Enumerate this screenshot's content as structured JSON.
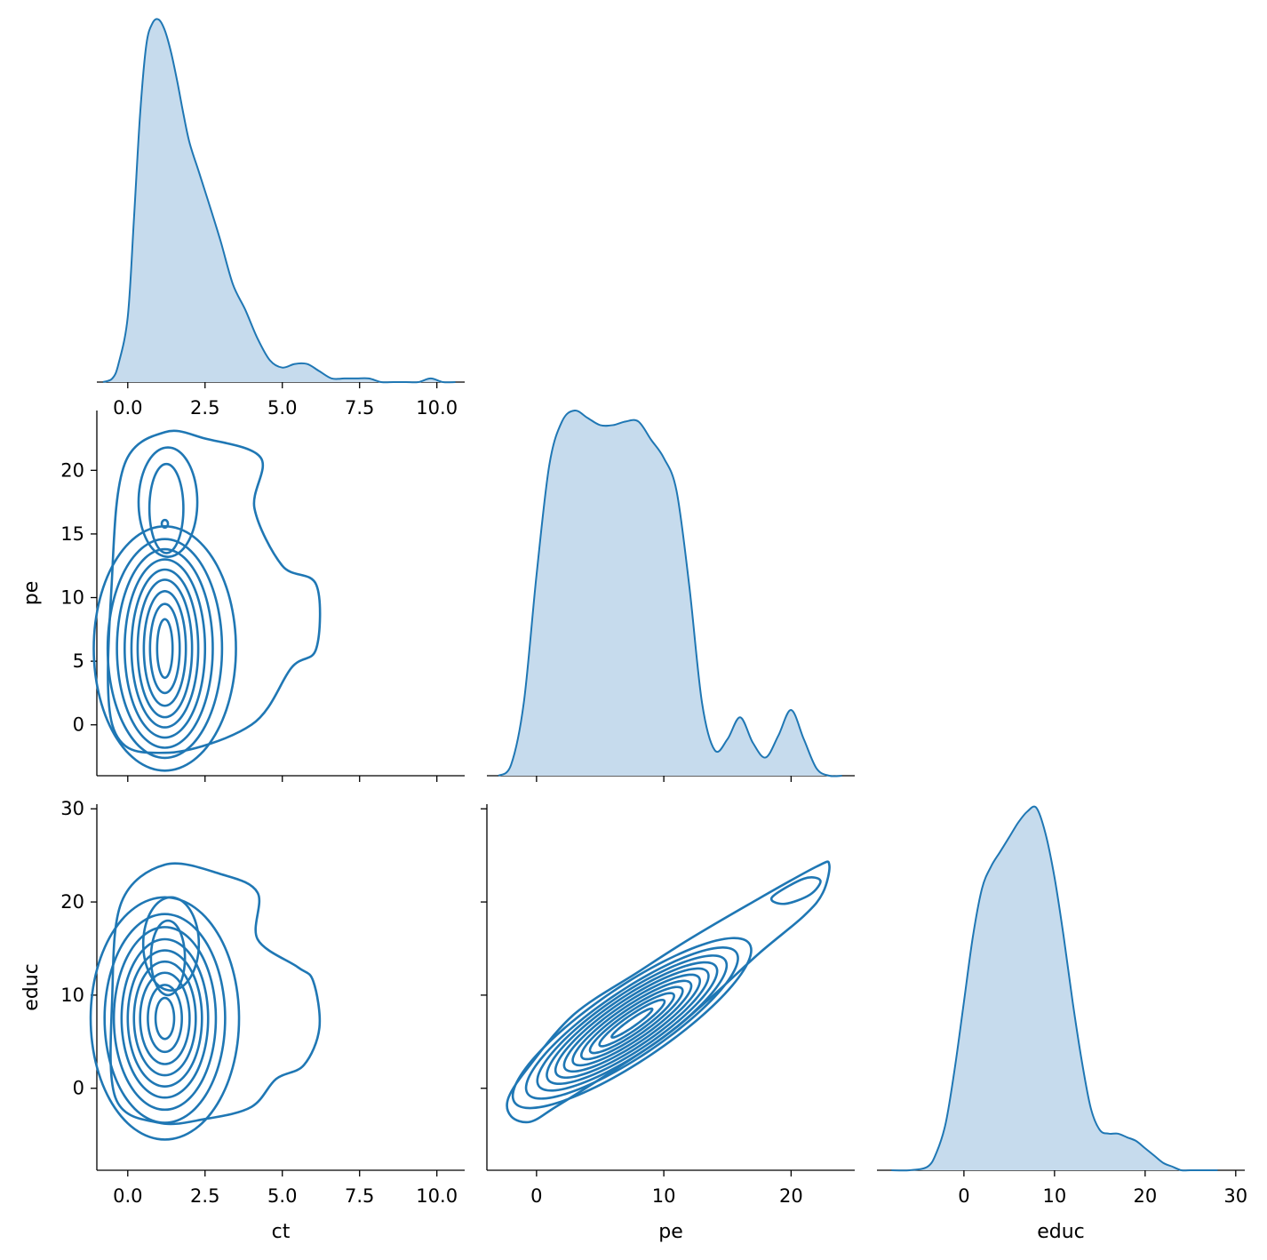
{
  "colors": {
    "series": "#1f77b4",
    "fill": "#c6dbed",
    "axis": "#000000"
  },
  "variables": [
    "ct",
    "pe",
    "educ"
  ],
  "chart_data": [
    {
      "type": "area",
      "id": "ct-diag",
      "xlabel": "",
      "ylabel": "",
      "xlim": [
        -1.0,
        10.9
      ],
      "ylim": [
        0,
        1
      ],
      "xticks": [
        0.0,
        2.5,
        5.0,
        7.5,
        10.0
      ],
      "x": [
        -0.8,
        -0.5,
        -0.3,
        0.0,
        0.2,
        0.4,
        0.6,
        0.8,
        1.0,
        1.2,
        1.4,
        1.6,
        1.8,
        2.0,
        2.3,
        2.6,
        3.0,
        3.4,
        3.8,
        4.2,
        4.6,
        5.0,
        5.4,
        5.8,
        6.2,
        6.6,
        7.0,
        7.4,
        7.8,
        8.2,
        8.6,
        9.0,
        9.4,
        9.8,
        10.2,
        10.6
      ],
      "y": [
        0.0,
        0.01,
        0.05,
        0.18,
        0.45,
        0.74,
        0.93,
        0.99,
        1.0,
        0.97,
        0.91,
        0.83,
        0.74,
        0.66,
        0.58,
        0.5,
        0.39,
        0.27,
        0.2,
        0.12,
        0.06,
        0.04,
        0.05,
        0.05,
        0.03,
        0.01,
        0.01,
        0.01,
        0.01,
        0.0,
        0.0,
        0.0,
        0.0,
        0.01,
        0.0,
        0.0
      ]
    },
    {
      "type": "area",
      "id": "pe-diag",
      "xlabel": "",
      "ylabel": "",
      "xlim": [
        -3.9,
        25.0
      ],
      "ylim": [
        0,
        1
      ],
      "x": [
        -3,
        -2,
        -1,
        0,
        1,
        2,
        3,
        4,
        5,
        6,
        7,
        8,
        9,
        10,
        11,
        12,
        13,
        14,
        15,
        16,
        17,
        18,
        19,
        20,
        21,
        22,
        23,
        24
      ],
      "y": [
        0.0,
        0.03,
        0.2,
        0.55,
        0.85,
        0.97,
        1.0,
        0.98,
        0.96,
        0.96,
        0.97,
        0.97,
        0.92,
        0.87,
        0.78,
        0.52,
        0.2,
        0.07,
        0.1,
        0.16,
        0.09,
        0.05,
        0.11,
        0.18,
        0.1,
        0.02,
        0.0,
        0.0
      ]
    },
    {
      "type": "area",
      "id": "educ-diag",
      "xlabel": "educ",
      "ylabel": "",
      "xlim": [
        -9.6,
        31.0
      ],
      "ylim": [
        0,
        1
      ],
      "xticks": [
        0,
        10,
        20,
        30
      ],
      "x": [
        -8,
        -6,
        -4,
        -3,
        -2,
        -1,
        0,
        1,
        2,
        3,
        4,
        5,
        6,
        7,
        8,
        9,
        10,
        11,
        12,
        13,
        14,
        15,
        16,
        17,
        18,
        19,
        20,
        21,
        22,
        23,
        24,
        25,
        26,
        28
      ],
      "y": [
        0.0,
        0.0,
        0.01,
        0.05,
        0.13,
        0.28,
        0.46,
        0.64,
        0.77,
        0.83,
        0.87,
        0.91,
        0.95,
        0.98,
        0.99,
        0.92,
        0.8,
        0.64,
        0.46,
        0.3,
        0.17,
        0.11,
        0.1,
        0.1,
        0.09,
        0.08,
        0.06,
        0.04,
        0.02,
        0.01,
        0.0,
        0.0,
        0.0,
        0.0
      ]
    },
    {
      "type": "line",
      "subtype": "kde-contour",
      "id": "ct-pe",
      "xlabel": "",
      "ylabel": "pe",
      "xlim": [
        -1.0,
        10.9
      ],
      "ylim": [
        -4.0,
        24.7
      ],
      "yticks": [
        0,
        5,
        10,
        15,
        20
      ],
      "center": {
        "x": 1.2,
        "y": 6.0
      },
      "levels": [
        {
          "rx": 0.25,
          "ry": 2.3
        },
        {
          "rx": 0.48,
          "ry": 3.5
        },
        {
          "rx": 0.68,
          "ry": 4.5
        },
        {
          "rx": 0.88,
          "ry": 5.4
        },
        {
          "rx": 1.08,
          "ry": 6.2
        },
        {
          "rx": 1.3,
          "ry": 7.0
        },
        {
          "rx": 1.55,
          "ry": 7.8
        },
        {
          "rx": 1.85,
          "ry": 8.6
        },
        {
          "rx": 2.3,
          "ry": 9.6
        }
      ],
      "outer": [
        [
          1.2,
          23.0
        ],
        [
          2.5,
          22.5
        ],
        [
          4.3,
          21.0
        ],
        [
          4.1,
          17.0
        ],
        [
          5.0,
          12.5
        ],
        [
          6.1,
          11.0
        ],
        [
          6.1,
          6.0
        ],
        [
          5.3,
          4.5
        ],
        [
          4.0,
          0.0
        ],
        [
          1.2,
          -2.2
        ],
        [
          -0.5,
          0.0
        ],
        [
          -0.5,
          12.0
        ],
        [
          -0.1,
          20.5
        ]
      ],
      "upper_lobes": [
        {
          "x": 1.2,
          "y": 15.8,
          "rx": 0.1,
          "ry": 0.3
        },
        {
          "x": 1.25,
          "y": 17.0,
          "rx": 0.55,
          "ry": 3.5
        },
        {
          "x": 1.3,
          "y": 17.5,
          "rx": 0.95,
          "ry": 4.3
        }
      ]
    },
    {
      "type": "line",
      "subtype": "kde-contour",
      "id": "ct-educ",
      "xlabel": "ct",
      "ylabel": "educ",
      "xlim": [
        -1.0,
        10.9
      ],
      "ylim": [
        -8.8,
        30.5
      ],
      "xticks": [
        0.0,
        2.5,
        5.0,
        7.5,
        10.0
      ],
      "yticks": [
        0,
        10,
        20,
        30
      ],
      "center": {
        "x": 1.2,
        "y": 7.5
      },
      "levels": [
        {
          "rx": 0.3,
          "ry": 2.2
        },
        {
          "rx": 0.55,
          "ry": 3.6
        },
        {
          "rx": 0.8,
          "ry": 4.9
        },
        {
          "rx": 1.0,
          "ry": 6.1
        },
        {
          "rx": 1.2,
          "ry": 7.3
        },
        {
          "rx": 1.4,
          "ry": 8.5
        },
        {
          "rx": 1.65,
          "ry": 9.8
        },
        {
          "rx": 1.95,
          "ry": 11.2
        },
        {
          "rx": 2.4,
          "ry": 13.0
        }
      ],
      "outer": [
        [
          1.2,
          24.0
        ],
        [
          3.0,
          23.0
        ],
        [
          4.2,
          21.0
        ],
        [
          4.2,
          16.0
        ],
        [
          5.5,
          13.0
        ],
        [
          6.0,
          11.5
        ],
        [
          6.2,
          6.5
        ],
        [
          5.7,
          2.5
        ],
        [
          4.8,
          1.0
        ],
        [
          4.0,
          -2.0
        ],
        [
          2.5,
          -3.3
        ],
        [
          1.0,
          -3.7
        ],
        [
          -0.4,
          -1.0
        ],
        [
          -0.5,
          10.0
        ],
        [
          -0.2,
          20.0
        ]
      ],
      "upper_lobes": [
        {
          "x": 1.3,
          "y": 14.0,
          "rx": 0.55,
          "ry": 4.0
        },
        {
          "x": 1.4,
          "y": 15.5,
          "rx": 0.9,
          "ry": 5.0
        }
      ]
    },
    {
      "type": "line",
      "subtype": "kde-contour",
      "id": "pe-educ",
      "xlabel": "pe",
      "ylabel": "",
      "xlim": [
        -3.9,
        25.0
      ],
      "ylim": [
        -8.8,
        30.5
      ],
      "xticks": [
        0,
        10,
        20
      ],
      "center": {
        "x": 7.5,
        "y": 7.0
      },
      "slope": 0.97,
      "levels": [
        {
          "a": 2.2,
          "b": 0.35
        },
        {
          "a": 3.5,
          "b": 0.7
        },
        {
          "a": 4.5,
          "b": 1.0
        },
        {
          "a": 5.4,
          "b": 1.3
        },
        {
          "a": 6.3,
          "b": 1.6
        },
        {
          "a": 7.2,
          "b": 1.9
        },
        {
          "a": 8.1,
          "b": 2.2
        },
        {
          "a": 9.0,
          "b": 2.5
        },
        {
          "a": 10.0,
          "b": 2.8
        },
        {
          "a": 11.2,
          "b": 3.1
        },
        {
          "a": 12.6,
          "b": 3.5
        }
      ],
      "outer": [
        [
          -2.0,
          -3.0
        ],
        [
          -2.2,
          -1.0
        ],
        [
          -0.5,
          2.5
        ],
        [
          3.0,
          8.0
        ],
        [
          8.0,
          12.5
        ],
        [
          12.0,
          16.0
        ],
        [
          17.0,
          20.0
        ],
        [
          22.0,
          23.8
        ],
        [
          23.0,
          24.0
        ],
        [
          22.5,
          21.0
        ],
        [
          21.0,
          18.5
        ],
        [
          17.5,
          14.5
        ],
        [
          13.5,
          9.5
        ],
        [
          10.0,
          5.5
        ],
        [
          5.0,
          1.0
        ],
        [
          1.5,
          -2.0
        ],
        [
          -0.5,
          -3.6
        ]
      ],
      "tail_loop": [
        [
          18.5,
          20.5
        ],
        [
          21.0,
          22.5
        ],
        [
          22.3,
          22.3
        ],
        [
          21.5,
          20.8
        ],
        [
          19.5,
          19.8
        ]
      ]
    }
  ]
}
